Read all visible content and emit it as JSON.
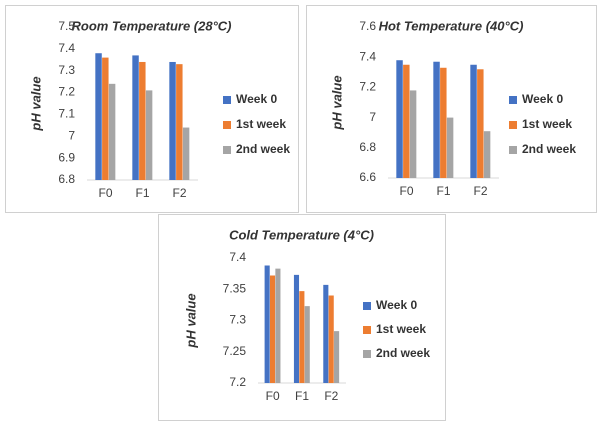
{
  "chart_data": [
    {
      "type": "bar",
      "title": "Room Temperature (28°C)",
      "y_label": "pH value",
      "categories": [
        "F0",
        "F1",
        "F2"
      ],
      "series": [
        {
          "name": "Week 0",
          "color": "#4472c4",
          "values": [
            7.38,
            7.37,
            7.34
          ]
        },
        {
          "name": "1st week",
          "color": "#ed7d31",
          "values": [
            7.36,
            7.34,
            7.33
          ]
        },
        {
          "name": "2nd week",
          "color": "#a5a5a5",
          "values": [
            7.24,
            7.21,
            7.04
          ]
        }
      ],
      "ylim": [
        6.8,
        7.5
      ],
      "yticks": [
        6.8,
        6.9,
        7,
        7.1,
        7.2,
        7.3,
        7.4,
        7.5
      ],
      "grid": false,
      "legend": "right"
    },
    {
      "type": "bar",
      "title": "Hot Temperature (40°C)",
      "y_label": "pH value",
      "categories": [
        "F0",
        "F1",
        "F2"
      ],
      "series": [
        {
          "name": "Week 0",
          "color": "#4472c4",
          "values": [
            7.38,
            7.37,
            7.35
          ]
        },
        {
          "name": "1st week",
          "color": "#ed7d31",
          "values": [
            7.35,
            7.33,
            7.32
          ]
        },
        {
          "name": "2nd week",
          "color": "#a5a5a5",
          "values": [
            7.18,
            7.0,
            6.91
          ]
        }
      ],
      "ylim": [
        6.6,
        7.6
      ],
      "yticks": [
        6.6,
        6.8,
        7,
        7.2,
        7.4,
        7.6
      ],
      "grid": false,
      "legend": "right"
    },
    {
      "type": "bar",
      "title": "Cold Temperature (4°C)",
      "y_label": "pH value",
      "categories": [
        "F0",
        "F1",
        "F2"
      ],
      "series": [
        {
          "name": "Week 0",
          "color": "#4472c4",
          "values": [
            7.388,
            7.373,
            7.357
          ]
        },
        {
          "name": "1st week",
          "color": "#ed7d31",
          "values": [
            7.372,
            7.347,
            7.34
          ]
        },
        {
          "name": "2nd week",
          "color": "#a5a5a5",
          "values": [
            7.383,
            7.323,
            7.283
          ]
        }
      ],
      "ylim": [
        7.2,
        7.4
      ],
      "yticks": [
        7.2,
        7.25,
        7.3,
        7.35,
        7.4
      ],
      "grid": false,
      "legend": "right"
    }
  ]
}
